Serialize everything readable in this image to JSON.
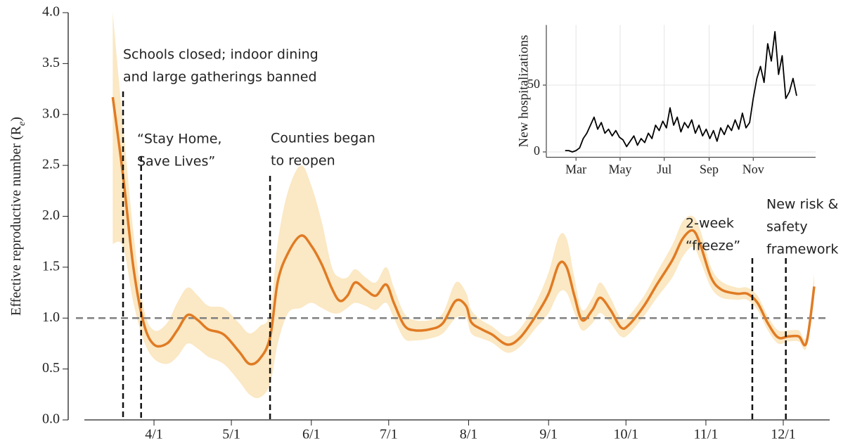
{
  "chart_data": [
    {
      "type": "line",
      "ylabel": {
        "text": "Effective reproductive number (R",
        "sub": "e",
        "tail": ")"
      },
      "xlim": [
        "3/5",
        "12/19"
      ],
      "xticks": [
        "4/1",
        "5/1",
        "6/1",
        "7/1",
        "8/1",
        "9/1",
        "10/1",
        "11/1",
        "12/1"
      ],
      "ylim": [
        0,
        4
      ],
      "yticks": [
        {
          "value": 0,
          "label": "0.0"
        },
        0.5,
        {
          "value": 1,
          "label": "1.0"
        },
        1.5,
        {
          "value": 2,
          "label": "2.0"
        },
        2.5,
        {
          "value": 3,
          "label": "3.0"
        },
        3.5,
        {
          "value": 4,
          "label": "4.0"
        }
      ],
      "grid": false,
      "hline": 1,
      "hline_color": "#808080",
      "x": [
        "3/16",
        "3/20",
        "3/24",
        "3/28",
        "4/1",
        "4/6",
        "4/10",
        "4/14",
        "4/18",
        "4/22",
        "4/28",
        "5/4",
        "5/8",
        "5/12",
        "5/16",
        "5/19",
        "5/23",
        "5/28",
        "6/1",
        "6/5",
        "6/9",
        "6/12",
        "6/15",
        "6/18",
        "6/22",
        "6/26",
        "6/30",
        "7/3",
        "7/7",
        "7/11",
        "7/17",
        "7/22",
        "7/27",
        "7/31",
        "8/2",
        "8/6",
        "8/10",
        "8/16",
        "8/21",
        "8/27",
        "9/1",
        "9/5",
        "9/8",
        "9/11",
        "9/14",
        "9/18",
        "9/21",
        "9/25",
        "9/29",
        "10/2",
        "10/8",
        "10/13",
        "10/19",
        "10/23",
        "10/27",
        "10/30",
        "11/3",
        "11/7",
        "11/13",
        "11/17",
        "11/21",
        "11/25",
        "11/29",
        "12/3",
        "12/7",
        "12/10",
        "12/13"
      ],
      "series": [
        {
          "color": "#e07b24",
          "band_color": "#fbe8c4",
          "values": [
            3.17,
            2.4,
            1.5,
            0.95,
            0.74,
            0.75,
            0.88,
            1.03,
            0.98,
            0.89,
            0.84,
            0.67,
            0.55,
            0.6,
            0.81,
            1.36,
            1.64,
            1.81,
            1.71,
            1.53,
            1.29,
            1.17,
            1.22,
            1.35,
            1.28,
            1.22,
            1.33,
            1.15,
            0.93,
            0.88,
            0.89,
            0.95,
            1.17,
            1.12,
            0.96,
            0.89,
            0.84,
            0.74,
            0.81,
            1.02,
            1.24,
            1.53,
            1.5,
            1.22,
            0.98,
            1.08,
            1.2,
            1.08,
            0.91,
            0.93,
            1.12,
            1.33,
            1.57,
            1.78,
            1.86,
            1.71,
            1.4,
            1.28,
            1.24,
            1.24,
            1.15,
            0.95,
            0.81,
            0.82,
            0.82,
            0.76,
            1.31
          ],
          "lower": [
            1.73,
            1.7,
            1.15,
            0.78,
            0.6,
            0.55,
            0.62,
            0.75,
            0.7,
            0.62,
            0.55,
            0.38,
            0.25,
            0.22,
            0.35,
            0.75,
            1.05,
            1.1,
            1.15,
            1.1,
            1.05,
            1.05,
            1.1,
            1.15,
            1.12,
            1.08,
            1.15,
            1.0,
            0.8,
            0.78,
            0.8,
            0.85,
            1.0,
            1.0,
            0.85,
            0.8,
            0.76,
            0.66,
            0.72,
            0.9,
            1.05,
            1.25,
            1.25,
            1.05,
            0.88,
            0.95,
            1.05,
            0.95,
            0.82,
            0.84,
            1.02,
            1.2,
            1.4,
            1.6,
            1.7,
            1.55,
            1.3,
            1.2,
            1.18,
            1.18,
            1.08,
            0.88,
            0.75,
            0.77,
            0.77,
            0.71,
            1.2
          ],
          "upper": [
            4.0,
            2.9,
            1.85,
            1.1,
            0.88,
            0.95,
            1.15,
            1.3,
            1.22,
            1.12,
            1.1,
            0.95,
            0.85,
            0.92,
            1.05,
            1.75,
            2.25,
            2.5,
            2.3,
            1.95,
            1.5,
            1.4,
            1.4,
            1.48,
            1.4,
            1.35,
            1.5,
            1.3,
            1.05,
            0.98,
            0.98,
            1.05,
            1.35,
            1.25,
            1.08,
            0.98,
            0.92,
            0.82,
            0.9,
            1.15,
            1.45,
            1.8,
            1.78,
            1.4,
            1.08,
            1.2,
            1.35,
            1.2,
            1.0,
            1.02,
            1.22,
            1.45,
            1.72,
            1.95,
            2.0,
            1.85,
            1.5,
            1.36,
            1.3,
            1.3,
            1.22,
            1.02,
            0.88,
            0.88,
            0.88,
            0.82,
            1.43
          ]
        }
      ],
      "events": [
        {
          "x": "3/20",
          "label": [
            "Schools closed; indoor dining",
            "and large gatherings banned"
          ]
        },
        {
          "x": "3/27",
          "label": [
            "“Stay Home,",
            "Save Lives”"
          ]
        },
        {
          "x": "5/16",
          "label": [
            "Counties began",
            "to reopen"
          ]
        },
        {
          "x": "11/19",
          "label": [
            "2-week",
            "“freeze”"
          ]
        },
        {
          "x": "12/2",
          "label": [
            "New risk &",
            "safety",
            "framework"
          ]
        }
      ]
    },
    {
      "type": "line",
      "ylabel": "New hospitalizations",
      "xlim": [
        "1/20",
        "12/31"
      ],
      "xticks": [
        {
          "value": "3/1",
          "label": "Mar"
        },
        {
          "value": "5/1",
          "label": "May"
        },
        {
          "value": "7/1",
          "label": "Jul"
        },
        {
          "value": "9/1",
          "label": "Sep"
        },
        {
          "value": "11/1",
          "label": "Nov"
        }
      ],
      "ylim": [
        -4,
        95
      ],
      "yticks": [
        0,
        50
      ],
      "grid": true,
      "x": [
        "2/15",
        "2/20",
        "2/25",
        "3/1",
        "3/6",
        "3/11",
        "3/16",
        "3/21",
        "3/26",
        "3/31",
        "4/5",
        "4/10",
        "4/15",
        "4/20",
        "4/25",
        "4/30",
        "5/5",
        "5/10",
        "5/15",
        "5/20",
        "5/25",
        "5/30",
        "6/4",
        "6/9",
        "6/14",
        "6/19",
        "6/24",
        "6/29",
        "7/4",
        "7/9",
        "7/14",
        "7/19",
        "7/24",
        "7/29",
        "8/3",
        "8/8",
        "8/13",
        "8/18",
        "8/23",
        "8/28",
        "9/2",
        "9/7",
        "9/12",
        "9/17",
        "9/22",
        "9/27",
        "10/2",
        "10/7",
        "10/12",
        "10/17",
        "10/22",
        "10/27",
        "11/1",
        "11/6",
        "11/11",
        "11/16",
        "11/21",
        "11/26",
        "12/1",
        "12/6",
        "12/11",
        "12/16",
        "12/21",
        "12/26",
        "12/31"
      ],
      "series": [
        {
          "color": "#000000",
          "values": [
            1,
            1,
            0,
            1,
            3,
            10,
            14,
            20,
            26,
            17,
            22,
            14,
            17,
            12,
            16,
            11,
            9,
            4,
            8,
            12,
            5,
            10,
            7,
            14,
            10,
            20,
            16,
            23,
            18,
            33,
            20,
            26,
            15,
            22,
            18,
            24,
            14,
            20,
            12,
            17,
            10,
            16,
            8,
            18,
            13,
            20,
            16,
            24,
            17,
            29,
            18,
            22,
            40,
            55,
            64,
            52,
            81,
            68,
            90,
            58,
            72,
            40,
            45,
            55,
            42
          ]
        }
      ]
    }
  ]
}
